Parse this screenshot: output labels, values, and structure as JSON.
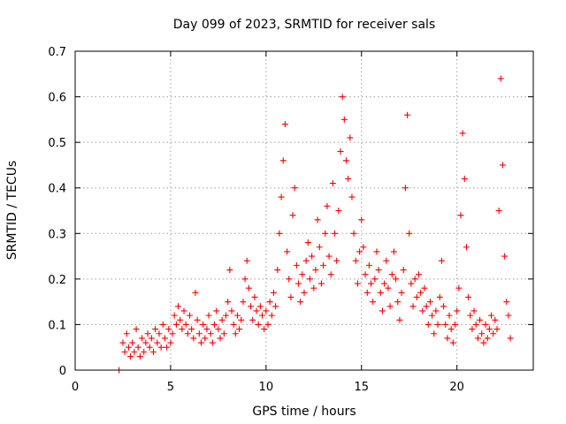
{
  "chart_data": {
    "type": "scatter",
    "title": "Day 099 of 2023, SRMTID for receiver sals",
    "xlabel": "GPS time / hours",
    "ylabel": "SRMTID / TECUs",
    "xlim": [
      0,
      24
    ],
    "ylim": [
      0,
      0.7
    ],
    "xticks": [
      "0",
      "5",
      "10",
      "15",
      "20"
    ],
    "xtick_values": [
      0,
      5,
      10,
      15,
      20
    ],
    "yticks": [
      "0",
      "0.1",
      "0.2",
      "0.3",
      "0.4",
      "0.5",
      "0.6",
      "0.7"
    ],
    "ytick_values": [
      0,
      0.1,
      0.2,
      0.3,
      0.4,
      0.5,
      0.6,
      0.7
    ],
    "grid": true,
    "marker": "plus",
    "color": "#ff0000",
    "series": [
      {
        "name": "sals",
        "points": [
          [
            2.3,
            0.0
          ],
          [
            2.5,
            0.06
          ],
          [
            2.6,
            0.04
          ],
          [
            2.7,
            0.08
          ],
          [
            2.8,
            0.05
          ],
          [
            2.9,
            0.03
          ],
          [
            3.0,
            0.06
          ],
          [
            3.1,
            0.04
          ],
          [
            3.2,
            0.09
          ],
          [
            3.3,
            0.05
          ],
          [
            3.4,
            0.03
          ],
          [
            3.5,
            0.07
          ],
          [
            3.6,
            0.04
          ],
          [
            3.7,
            0.06
          ],
          [
            3.8,
            0.08
          ],
          [
            3.9,
            0.05
          ],
          [
            4.0,
            0.07
          ],
          [
            4.1,
            0.04
          ],
          [
            4.2,
            0.09
          ],
          [
            4.3,
            0.06
          ],
          [
            4.4,
            0.08
          ],
          [
            4.5,
            0.05
          ],
          [
            4.6,
            0.1
          ],
          [
            4.7,
            0.07
          ],
          [
            4.8,
            0.05
          ],
          [
            4.9,
            0.09
          ],
          [
            5.0,
            0.06
          ],
          [
            5.1,
            0.08
          ],
          [
            5.2,
            0.12
          ],
          [
            5.3,
            0.1
          ],
          [
            5.4,
            0.14
          ],
          [
            5.5,
            0.11
          ],
          [
            5.6,
            0.09
          ],
          [
            5.7,
            0.13
          ],
          [
            5.8,
            0.1
          ],
          [
            5.9,
            0.08
          ],
          [
            6.0,
            0.12
          ],
          [
            6.1,
            0.09
          ],
          [
            6.2,
            0.07
          ],
          [
            6.3,
            0.17
          ],
          [
            6.4,
            0.11
          ],
          [
            6.5,
            0.08
          ],
          [
            6.6,
            0.06
          ],
          [
            6.7,
            0.1
          ],
          [
            6.8,
            0.07
          ],
          [
            6.9,
            0.09
          ],
          [
            7.0,
            0.12
          ],
          [
            7.1,
            0.08
          ],
          [
            7.2,
            0.06
          ],
          [
            7.3,
            0.1
          ],
          [
            7.4,
            0.13
          ],
          [
            7.5,
            0.09
          ],
          [
            7.6,
            0.07
          ],
          [
            7.7,
            0.11
          ],
          [
            7.8,
            0.08
          ],
          [
            7.9,
            0.12
          ],
          [
            8.0,
            0.15
          ],
          [
            8.1,
            0.22
          ],
          [
            8.2,
            0.13
          ],
          [
            8.3,
            0.1
          ],
          [
            8.4,
            0.08
          ],
          [
            8.5,
            0.12
          ],
          [
            8.6,
            0.09
          ],
          [
            8.7,
            0.11
          ],
          [
            8.8,
            0.15
          ],
          [
            8.9,
            0.2
          ],
          [
            9.0,
            0.24
          ],
          [
            9.1,
            0.18
          ],
          [
            9.2,
            0.14
          ],
          [
            9.3,
            0.11
          ],
          [
            9.4,
            0.16
          ],
          [
            9.5,
            0.13
          ],
          [
            9.6,
            0.1
          ],
          [
            9.7,
            0.14
          ],
          [
            9.8,
            0.12
          ],
          [
            9.9,
            0.09
          ],
          [
            10.0,
            0.13
          ],
          [
            10.1,
            0.1
          ],
          [
            10.2,
            0.15
          ],
          [
            10.3,
            0.12
          ],
          [
            10.4,
            0.17
          ],
          [
            10.5,
            0.14
          ],
          [
            10.6,
            0.22
          ],
          [
            10.7,
            0.3
          ],
          [
            10.8,
            0.38
          ],
          [
            10.9,
            0.46
          ],
          [
            11.0,
            0.54
          ],
          [
            11.1,
            0.26
          ],
          [
            11.2,
            0.2
          ],
          [
            11.3,
            0.16
          ],
          [
            11.4,
            0.34
          ],
          [
            11.5,
            0.4
          ],
          [
            11.6,
            0.23
          ],
          [
            11.7,
            0.19
          ],
          [
            11.8,
            0.15
          ],
          [
            11.9,
            0.21
          ],
          [
            12.0,
            0.17
          ],
          [
            12.1,
            0.24
          ],
          [
            12.2,
            0.28
          ],
          [
            12.3,
            0.2
          ],
          [
            12.4,
            0.25
          ],
          [
            12.5,
            0.18
          ],
          [
            12.6,
            0.22
          ],
          [
            12.7,
            0.33
          ],
          [
            12.8,
            0.27
          ],
          [
            12.9,
            0.19
          ],
          [
            13.0,
            0.23
          ],
          [
            13.1,
            0.3
          ],
          [
            13.2,
            0.36
          ],
          [
            13.3,
            0.25
          ],
          [
            13.4,
            0.21
          ],
          [
            13.5,
            0.41
          ],
          [
            13.6,
            0.3
          ],
          [
            13.7,
            0.24
          ],
          [
            13.8,
            0.35
          ],
          [
            13.9,
            0.48
          ],
          [
            14.0,
            0.6
          ],
          [
            14.1,
            0.55
          ],
          [
            14.2,
            0.46
          ],
          [
            14.3,
            0.42
          ],
          [
            14.4,
            0.51
          ],
          [
            14.5,
            0.38
          ],
          [
            14.6,
            0.3
          ],
          [
            14.7,
            0.24
          ],
          [
            14.8,
            0.19
          ],
          [
            14.9,
            0.26
          ],
          [
            15.0,
            0.33
          ],
          [
            15.1,
            0.27
          ],
          [
            15.2,
            0.21
          ],
          [
            15.3,
            0.17
          ],
          [
            15.4,
            0.23
          ],
          [
            15.5,
            0.19
          ],
          [
            15.6,
            0.15
          ],
          [
            15.7,
            0.2
          ],
          [
            15.8,
            0.26
          ],
          [
            15.9,
            0.22
          ],
          [
            16.0,
            0.17
          ],
          [
            16.1,
            0.13
          ],
          [
            16.2,
            0.19
          ],
          [
            16.3,
            0.24
          ],
          [
            16.4,
            0.18
          ],
          [
            16.5,
            0.14
          ],
          [
            16.6,
            0.21
          ],
          [
            16.7,
            0.26
          ],
          [
            16.8,
            0.2
          ],
          [
            16.9,
            0.15
          ],
          [
            17.0,
            0.11
          ],
          [
            17.1,
            0.17
          ],
          [
            17.2,
            0.22
          ],
          [
            17.3,
            0.4
          ],
          [
            17.4,
            0.56
          ],
          [
            17.5,
            0.3
          ],
          [
            17.6,
            0.19
          ],
          [
            17.7,
            0.14
          ],
          [
            17.8,
            0.2
          ],
          [
            17.9,
            0.16
          ],
          [
            18.0,
            0.21
          ],
          [
            18.1,
            0.17
          ],
          [
            18.2,
            0.13
          ],
          [
            18.3,
            0.18
          ],
          [
            18.4,
            0.14
          ],
          [
            18.5,
            0.1
          ],
          [
            18.6,
            0.15
          ],
          [
            18.7,
            0.12
          ],
          [
            18.8,
            0.08
          ],
          [
            18.9,
            0.13
          ],
          [
            19.0,
            0.1
          ],
          [
            19.1,
            0.16
          ],
          [
            19.2,
            0.24
          ],
          [
            19.3,
            0.14
          ],
          [
            19.4,
            0.1
          ],
          [
            19.5,
            0.07
          ],
          [
            19.6,
            0.12
          ],
          [
            19.7,
            0.09
          ],
          [
            19.8,
            0.06
          ],
          [
            19.9,
            0.1
          ],
          [
            20.0,
            0.13
          ],
          [
            20.1,
            0.18
          ],
          [
            20.2,
            0.34
          ],
          [
            20.3,
            0.52
          ],
          [
            20.4,
            0.42
          ],
          [
            20.5,
            0.27
          ],
          [
            20.6,
            0.16
          ],
          [
            20.7,
            0.12
          ],
          [
            20.8,
            0.09
          ],
          [
            20.9,
            0.13
          ],
          [
            21.0,
            0.1
          ],
          [
            21.1,
            0.07
          ],
          [
            21.2,
            0.11
          ],
          [
            21.3,
            0.08
          ],
          [
            21.4,
            0.06
          ],
          [
            21.5,
            0.1
          ],
          [
            21.6,
            0.07
          ],
          [
            21.7,
            0.09
          ],
          [
            21.8,
            0.12
          ],
          [
            21.9,
            0.08
          ],
          [
            22.0,
            0.11
          ],
          [
            22.1,
            0.09
          ],
          [
            22.2,
            0.35
          ],
          [
            22.3,
            0.64
          ],
          [
            22.4,
            0.45
          ],
          [
            22.5,
            0.25
          ],
          [
            22.6,
            0.15
          ],
          [
            22.7,
            0.12
          ],
          [
            22.8,
            0.07
          ]
        ]
      }
    ]
  }
}
